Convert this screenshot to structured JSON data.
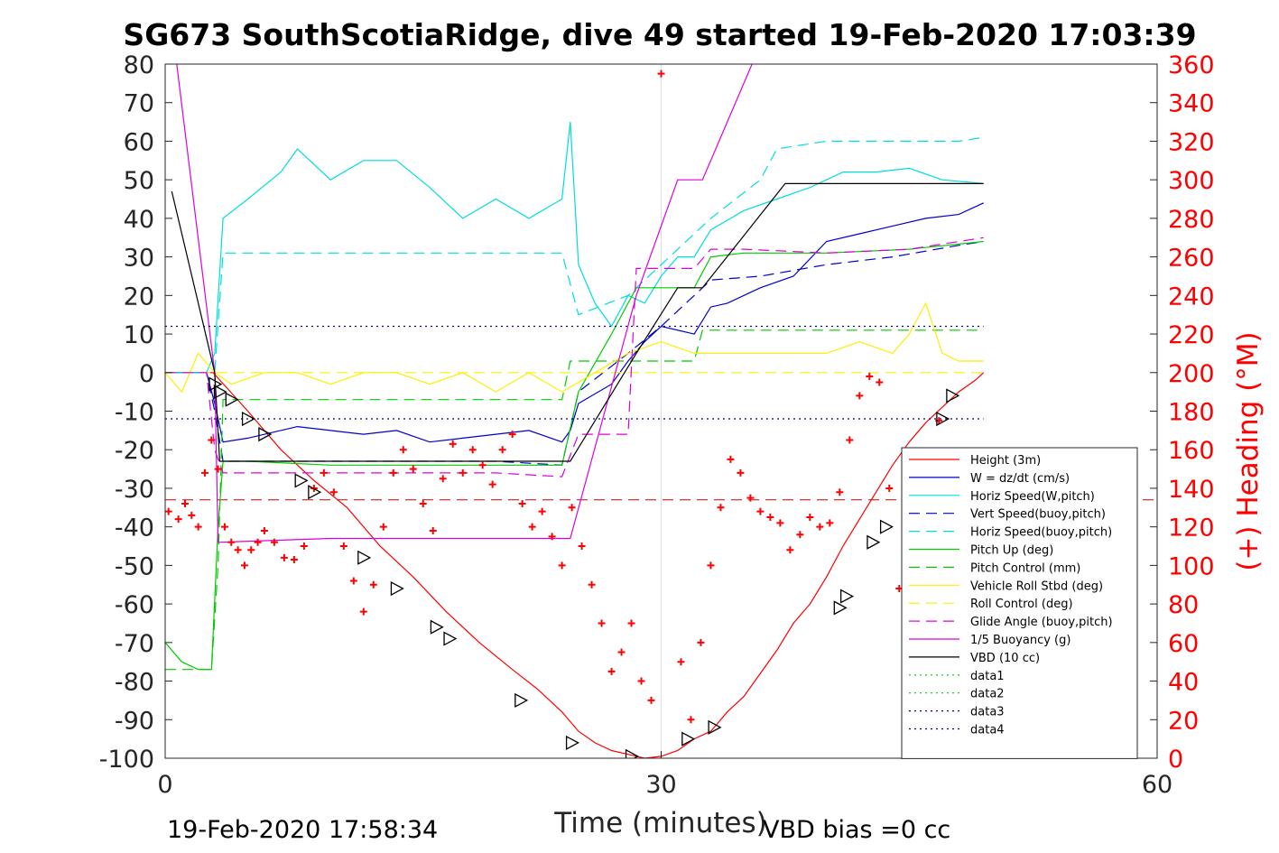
{
  "chart_data": {
    "type": "line",
    "title": "SG673 SouthScotiaRidge, dive 49 started 19-Feb-2020 17:03:39",
    "xlabel": "Time (minutes)",
    "ylabel": "",
    "ylabel_right": "(+) Heading (°M)",
    "xlim": [
      0,
      60
    ],
    "ylim": [
      -100,
      80
    ],
    "ylim_right": [
      0,
      360
    ],
    "xticks": [
      "0",
      "30",
      "60"
    ],
    "yticks_left": [
      "80",
      "70",
      "60",
      "50",
      "40",
      "30",
      "20",
      "10",
      "0",
      "-10",
      "-20",
      "-30",
      "-40",
      "-50",
      "-60",
      "-70",
      "-80",
      "-90",
      "-100"
    ],
    "yticks_right": [
      "360",
      "340",
      "320",
      "300",
      "280",
      "260",
      "240",
      "220",
      "200",
      "180",
      "160",
      "140",
      "120",
      "100",
      "80",
      "60",
      "40",
      "20",
      "0"
    ],
    "grid": "x=30 only",
    "legend_position": "lower-right",
    "footer_left": "19-Feb-2020 17:58:34",
    "footer_right": "VBD bias =0 cc",
    "series": [
      {
        "name": "Height (3m)",
        "color": "#ff0000",
        "style": "solid",
        "x": [
          0,
          2.9,
          5,
          7,
          9,
          11,
          13,
          15,
          17,
          19,
          21,
          22.5,
          24,
          25,
          26,
          27,
          28,
          29,
          30,
          31,
          32,
          33,
          34,
          35,
          36,
          37,
          38,
          39,
          40,
          41,
          42,
          43,
          44,
          45,
          46,
          47,
          48,
          49,
          49.5
        ],
        "y": [
          0,
          0,
          -10,
          -20,
          -28,
          -35,
          -45,
          -53,
          -62,
          -70,
          -77,
          -82,
          -88,
          -93,
          -96,
          -98,
          -99,
          -100,
          -99.5,
          -98,
          -95,
          -93,
          -88,
          -84,
          -78,
          -72,
          -65,
          -60,
          -53,
          -45,
          -38,
          -31,
          -24,
          -18,
          -13,
          -9,
          -5,
          -2,
          0
        ]
      },
      {
        "name": "W = dz/dt (cm/s)",
        "color": "#0000cc",
        "style": "solid",
        "x": [
          0,
          2.5,
          3,
          3.5,
          5,
          8,
          10,
          12,
          14,
          16,
          18,
          20,
          22,
          24,
          24.5,
          25,
          27,
          28,
          29,
          30,
          32,
          33,
          34,
          36,
          38,
          40,
          42,
          44,
          46,
          48,
          49.5
        ],
        "y": [
          0,
          0,
          -8,
          -18,
          -17,
          -14,
          -15,
          -16,
          -15,
          -18,
          -17,
          -16,
          -15,
          -18,
          -15,
          -8,
          -3,
          3,
          8,
          12,
          10,
          17,
          18,
          22,
          25,
          34,
          36,
          38,
          40,
          41,
          44
        ]
      },
      {
        "name": "Horiz Speed(W,pitch)",
        "color": "#00dddd",
        "style": "solid",
        "x": [
          0,
          2.5,
          3,
          3.5,
          5,
          7,
          8,
          10,
          12,
          14,
          16,
          18,
          20,
          22,
          24,
          24.5,
          25,
          26,
          27,
          28,
          29,
          30,
          31,
          32,
          33,
          35,
          37,
          39,
          41,
          43,
          45,
          47,
          49.5
        ],
        "y": [
          0,
          0,
          5,
          40,
          45,
          52,
          58,
          50,
          55,
          55,
          48,
          40,
          45,
          40,
          45,
          65,
          28,
          18,
          12,
          20,
          18,
          25,
          30,
          30,
          37,
          42,
          45,
          48,
          52,
          52,
          53,
          50,
          49
        ]
      },
      {
        "name": "Vert Speed(buoy,pitch)",
        "color": "#0000cc",
        "style": "dashed",
        "x": [
          0,
          2.5,
          3,
          3.5,
          10,
          20,
          24,
          25,
          28,
          30,
          33,
          36,
          40,
          44,
          48,
          49.5
        ],
        "y": [
          0,
          0,
          -10,
          -23,
          -23,
          -23,
          -24,
          -5,
          5,
          12,
          24,
          25,
          28,
          30,
          33,
          34
        ]
      },
      {
        "name": "Horiz Speed(buoy,pitch)",
        "color": "#00dddd",
        "style": "dashed",
        "x": [
          0,
          3,
          3.5,
          10,
          20,
          24,
          25,
          28,
          30,
          33,
          36,
          37,
          40,
          44,
          48,
          49.5
        ],
        "y": [
          0,
          0,
          31,
          31,
          31,
          31,
          15,
          20,
          28,
          40,
          50,
          58,
          60,
          60,
          60,
          61
        ]
      },
      {
        "name": "Pitch Up (deg)",
        "color": "#00cc00",
        "style": "solid",
        "x": [
          0,
          1,
          2,
          2.8,
          3.2,
          3.5,
          5,
          10,
          15,
          20,
          24,
          25,
          27,
          28.5,
          30,
          32,
          33,
          35,
          40,
          45,
          49.5
        ],
        "y": [
          -70,
          -75,
          -77,
          -77,
          -40,
          -23,
          -23,
          -24,
          -24,
          -24,
          -24,
          -5,
          10,
          22,
          22,
          22,
          30,
          31,
          31,
          32,
          34
        ]
      },
      {
        "name": "Pitch Control (mm)",
        "color": "#00cc00",
        "style": "dashed",
        "x": [
          0,
          2.5,
          2.8,
          3.2,
          3.5,
          24,
          24.5,
          32,
          32.5,
          49.5
        ],
        "y": [
          -77,
          -77,
          -77,
          -50,
          -7,
          -7,
          3,
          3,
          11,
          11
        ]
      },
      {
        "name": "Vehicle Roll Stbd (deg)",
        "color": "#ffee00",
        "style": "solid",
        "x": [
          0,
          1,
          2,
          3,
          4,
          6,
          8,
          10,
          12,
          14,
          16,
          18,
          20,
          22,
          24,
          26,
          28,
          30,
          32,
          34,
          36,
          38,
          40,
          42,
          44,
          45,
          46,
          47,
          48,
          49.5
        ],
        "y": [
          0,
          -5,
          5,
          0,
          -3,
          0,
          0,
          -3,
          0,
          0,
          -3,
          0,
          -5,
          0,
          -5,
          0,
          5,
          8,
          5,
          5,
          5,
          5,
          5,
          8,
          5,
          10,
          18,
          5,
          3,
          3
        ]
      },
      {
        "name": "Roll Control (deg)",
        "color": "#ffee00",
        "style": "dashed",
        "x": [
          0,
          2.5,
          3,
          10,
          20,
          24,
          25,
          30,
          35,
          40,
          45,
          49.5
        ],
        "y": [
          0,
          0,
          0,
          0,
          0,
          0,
          0,
          0,
          0,
          0,
          0,
          0
        ]
      },
      {
        "name": "Glide Angle (buoy,pitch)",
        "color": "#dd00dd",
        "style": "dashed",
        "x": [
          0,
          2.5,
          3,
          3.5,
          10,
          20,
          24,
          25,
          28,
          28.5,
          32,
          33,
          35,
          40,
          45,
          49.5
        ],
        "y": [
          0,
          0,
          -20,
          -26,
          -26,
          -26,
          -27,
          -16,
          -16,
          27,
          27,
          32,
          32,
          31,
          32,
          35
        ]
      },
      {
        "name": "1/5 Buoyancy (g)",
        "color": "#dd00dd",
        "style": "solid",
        "x": [
          0.7,
          3,
          3.2,
          10,
          20,
          24.5,
          28.5,
          31,
          32.5,
          35.5
        ],
        "y": [
          80,
          0,
          -44,
          -43,
          -43,
          -43,
          20,
          50,
          50,
          80
        ]
      },
      {
        "name": "VBD (10 cc)",
        "color": "#000000",
        "style": "solid",
        "x": [
          0.4,
          3,
          3.3,
          10,
          20,
          24.5,
          28.5,
          31,
          32.5,
          37.5,
          49.5
        ],
        "y": [
          47,
          0,
          -23,
          -23,
          -23,
          -23,
          5,
          22,
          22,
          49,
          49
        ]
      },
      {
        "name": "data1",
        "color": "#00cc00",
        "style": "dotted",
        "x": [],
        "y": []
      },
      {
        "name": "data2",
        "color": "#00cc00",
        "style": "dotted",
        "x": [],
        "y": []
      },
      {
        "name": "data3",
        "color": "#000088",
        "style": "dotted",
        "x": [
          0,
          49.5
        ],
        "y": [
          12,
          12
        ]
      },
      {
        "name": "data4",
        "color": "#000088",
        "style": "dotted",
        "x": [
          0,
          49.5
        ],
        "y": [
          -12,
          -12
        ]
      }
    ],
    "reference_lines": [
      {
        "color": "#cc0000",
        "style": "dashed",
        "y": -33
      }
    ],
    "heading_points": {
      "marker": "+",
      "color": "#ff0000",
      "axis": "right",
      "x": [
        0.2,
        0.8,
        1.2,
        1.6,
        2.0,
        2.4,
        2.8,
        3.2,
        3.6,
        4.0,
        4.4,
        4.8,
        5.2,
        5.6,
        6.0,
        6.6,
        7.2,
        7.8,
        8.4,
        9.0,
        9.6,
        10.2,
        10.8,
        11.4,
        12.0,
        12.6,
        13.2,
        13.8,
        14.4,
        15.0,
        15.6,
        16.2,
        16.8,
        17.4,
        18.0,
        18.6,
        19.2,
        19.8,
        20.4,
        21.0,
        21.6,
        22.2,
        22.8,
        23.4,
        24.0,
        24.6,
        25.2,
        25.8,
        26.4,
        27.0,
        27.6,
        28.2,
        28.8,
        29.4,
        30.0,
        30.6,
        31.2,
        31.8,
        32.4,
        33.0,
        33.6,
        34.2,
        34.8,
        35.4,
        36.0,
        36.6,
        37.2,
        37.8,
        38.4,
        39.0,
        39.6,
        40.2,
        40.8,
        41.4,
        42.0,
        42.6,
        43.2,
        43.8,
        44.4,
        45.0,
        45.6,
        46.0,
        46.4,
        46.8
      ],
      "y": [
        128,
        124,
        132,
        126,
        120,
        148,
        165,
        150,
        120,
        112,
        108,
        100,
        108,
        112,
        118,
        112,
        104,
        103,
        110,
        140,
        148,
        138,
        110,
        92,
        76,
        90,
        120,
        148,
        160,
        150,
        132,
        118,
        145,
        163,
        148,
        160,
        152,
        142,
        160,
        168,
        132,
        120,
        128,
        115,
        100,
        130,
        110,
        90,
        70,
        45,
        55,
        70,
        40,
        30,
        355,
        365,
        50,
        20,
        60,
        100,
        130,
        155,
        148,
        135,
        128,
        125,
        122,
        108,
        116,
        125,
        120,
        122,
        138,
        165,
        188,
        198,
        195,
        140,
        88,
        70,
        75,
        100,
        130,
        175
      ]
    },
    "markers": {
      "marker": "triangle",
      "color": "#000000",
      "x": [
        3,
        3.3,
        4,
        5,
        6,
        8.2,
        9,
        12,
        14,
        16.4,
        17.2,
        21.5,
        24.6,
        28.2,
        31.6,
        33.2,
        40.8,
        41.2,
        42.8,
        43.6,
        47,
        47.6
      ],
      "y": [
        -3,
        -5,
        -7,
        -12,
        -16,
        -28,
        -31,
        -48,
        -56,
        -66,
        -69,
        -85,
        -96,
        -99.5,
        -95,
        -92,
        -61,
        -58,
        -44,
        -40,
        -12,
        -6
      ]
    }
  }
}
